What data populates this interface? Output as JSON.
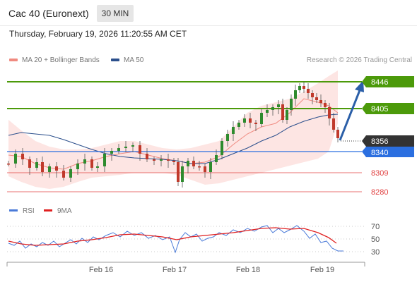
{
  "header": {
    "instrument": "Cac 40 (Euronext)",
    "timeframe": "30 MIN",
    "datetime": "Thursday, February 19, 2026 11:20:55 AM CET"
  },
  "legend": {
    "items": [
      {
        "label": "MA 20 + Bollinger Bands",
        "color": "#f08a80"
      },
      {
        "label": "MA 50",
        "color": "#2b4f8c"
      }
    ],
    "research": "Research © 2026 Trading Central"
  },
  "levels": [
    {
      "value": "8446",
      "kind": "resistance",
      "color": "#4c9a0a"
    },
    {
      "value": "8405",
      "kind": "resistance",
      "color": "#4c9a0a"
    },
    {
      "value": "8356",
      "kind": "last",
      "color": "#333333"
    },
    {
      "value": "8340",
      "kind": "pivot",
      "color": "#2b6fe0"
    },
    {
      "value": "8309",
      "kind": "support",
      "color": "#e04040"
    },
    {
      "value": "8280",
      "kind": "support",
      "color": "#e04040"
    }
  ],
  "rsi_legend": {
    "items": [
      {
        "label": "RSI",
        "color": "#4a7ad8"
      },
      {
        "label": "9MA",
        "color": "#e02020"
      }
    ]
  },
  "rsi_ticks": [
    "70",
    "50",
    "30"
  ],
  "x_ticks": [
    "Feb 16",
    "Feb 17",
    "Feb 18",
    "Feb 19"
  ]
}
